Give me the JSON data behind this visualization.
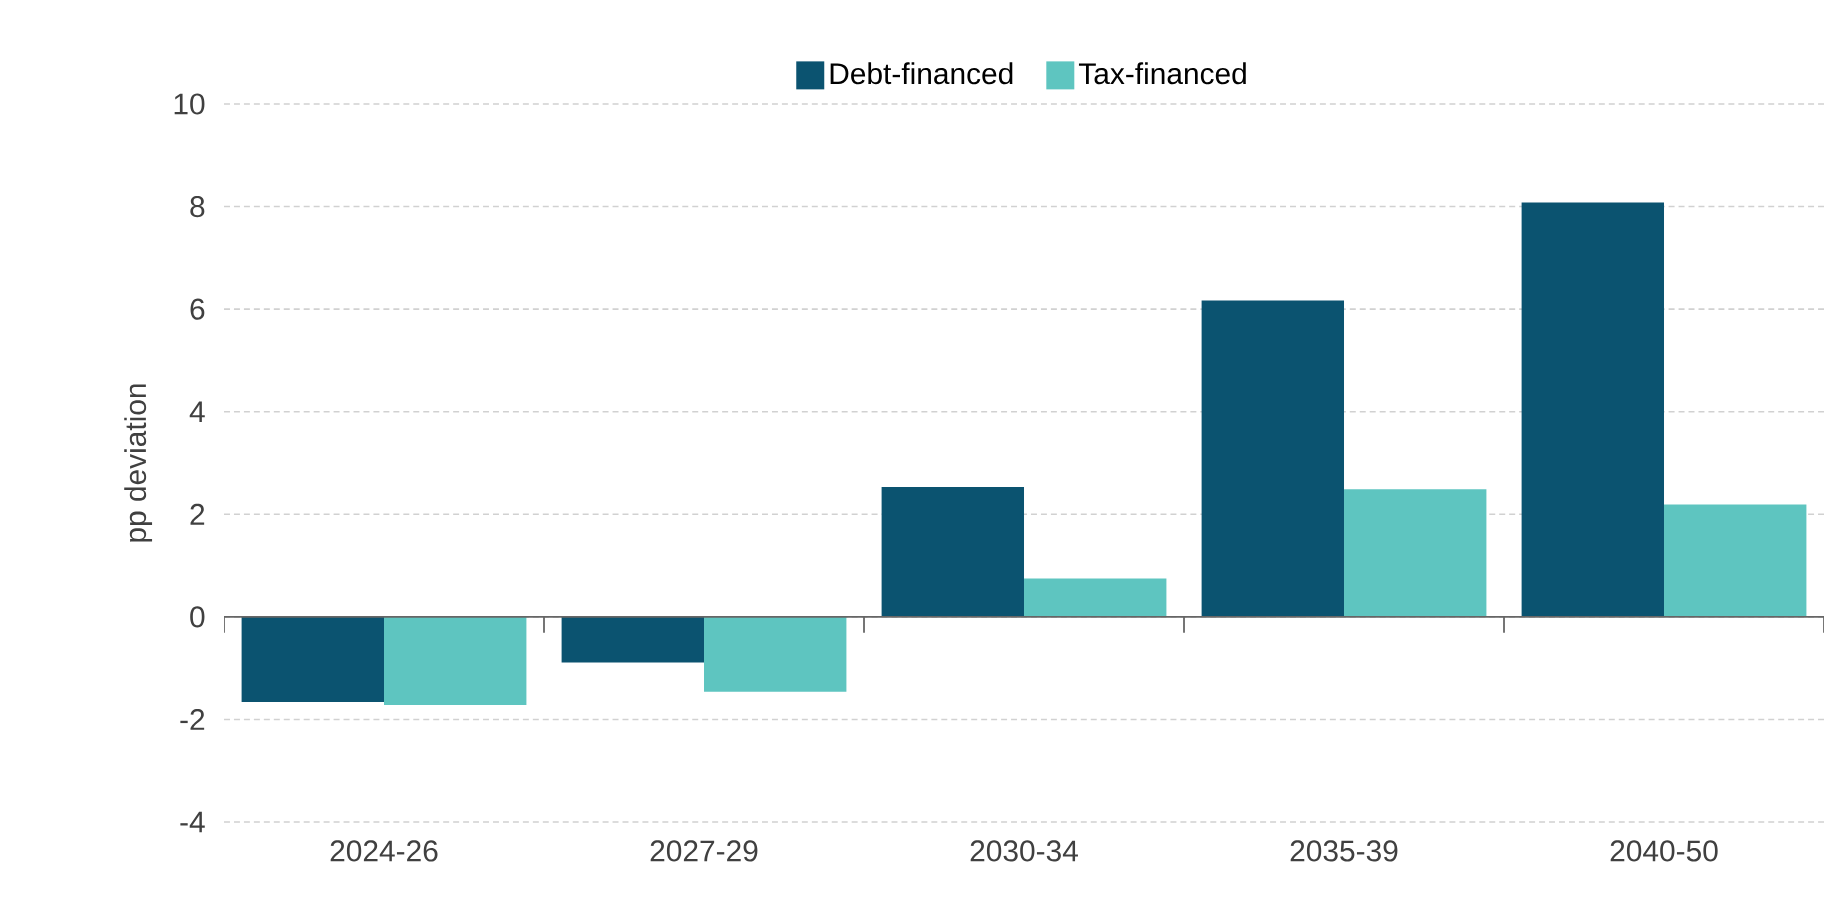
{
  "chart_data": {
    "type": "bar",
    "ylabel": "pp deviation",
    "categories": [
      "2024-26",
      "2027-29",
      "2030-34",
      "2035-39",
      "2040-50"
    ],
    "series": [
      {
        "name": "Debt-financed",
        "color": "#0b5370",
        "values": [
          -1.66,
          -0.89,
          2.53,
          6.17,
          8.08
        ]
      },
      {
        "name": "Tax-financed",
        "color": "#5ec5c0",
        "values": [
          -1.72,
          -1.46,
          0.75,
          2.49,
          2.19
        ]
      }
    ],
    "ylim": [
      -4,
      10
    ],
    "yticks": [
      -4,
      -2,
      0,
      2,
      4,
      6,
      8,
      10
    ],
    "grid": "y",
    "legend": "top"
  }
}
